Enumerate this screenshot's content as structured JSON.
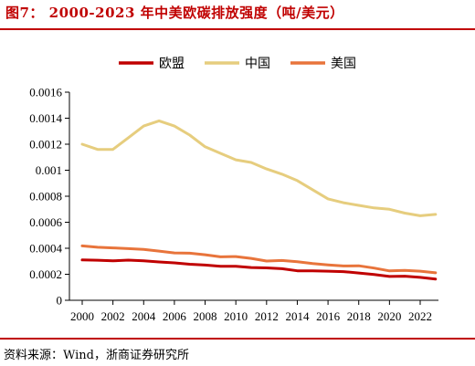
{
  "title": "图7： 2000-2023 年中美欧碳排放强度（吨/美元）",
  "source": "资料来源：Wind，浙商证券研究所",
  "chart_data": {
    "type": "line",
    "title": "2000-2023 年中美欧碳排放强度（吨/美元）",
    "xlabel": "",
    "ylabel": "",
    "x": [
      2000,
      2001,
      2002,
      2003,
      2004,
      2005,
      2006,
      2007,
      2008,
      2009,
      2010,
      2011,
      2012,
      2013,
      2014,
      2015,
      2016,
      2017,
      2018,
      2019,
      2020,
      2021,
      2022,
      2023
    ],
    "x_tick_labels": [
      "2000",
      "2002",
      "2004",
      "2006",
      "2008",
      "2010",
      "2012",
      "2014",
      "2016",
      "2018",
      "2020",
      "2022"
    ],
    "x_ticks": [
      2000,
      2002,
      2004,
      2006,
      2008,
      2010,
      2012,
      2014,
      2016,
      2018,
      2020,
      2022
    ],
    "xlim": [
      2000,
      2023
    ],
    "ylim": [
      0,
      0.0016
    ],
    "y_ticks": [
      0,
      0.0002,
      0.0004,
      0.0006,
      0.0008,
      0.001,
      0.0012,
      0.0014,
      0.0016
    ],
    "y_tick_labels": [
      "0",
      "0.0002",
      "0.0004",
      "0.0006",
      "0.0008",
      "0.001",
      "0.0012",
      "0.0014",
      "0.0016"
    ],
    "grid": false,
    "legend_position": "top-center",
    "series": [
      {
        "name": "欧盟",
        "color": "#c00000",
        "values": [
          0.00031,
          0.000308,
          0.000303,
          0.000309,
          0.000303,
          0.000295,
          0.000288,
          0.000277,
          0.000271,
          0.000261,
          0.000262,
          0.000252,
          0.000249,
          0.000243,
          0.000227,
          0.000226,
          0.000224,
          0.00022,
          0.00021,
          0.000198,
          0.000183,
          0.000185,
          0.000176,
          0.000163
        ]
      },
      {
        "name": "中国",
        "color": "#e6cd7e",
        "values": [
          0.0012,
          0.00116,
          0.00116,
          0.00125,
          0.00134,
          0.00138,
          0.00134,
          0.00127,
          0.00118,
          0.00113,
          0.00108,
          0.00106,
          0.00101,
          0.00097,
          0.00092,
          0.00085,
          0.00078,
          0.00075,
          0.00073,
          0.00071,
          0.0007,
          0.00067,
          0.00065,
          0.00066
        ]
      },
      {
        "name": "美国",
        "color": "#e8743b",
        "values": [
          0.000418,
          0.000408,
          0.000403,
          0.000397,
          0.000391,
          0.000378,
          0.000364,
          0.000362,
          0.00035,
          0.000334,
          0.000336,
          0.000322,
          0.000302,
          0.000306,
          0.000297,
          0.000283,
          0.000272,
          0.000264,
          0.000265,
          0.000248,
          0.000226,
          0.00023,
          0.000224,
          0.000211
        ]
      }
    ]
  }
}
